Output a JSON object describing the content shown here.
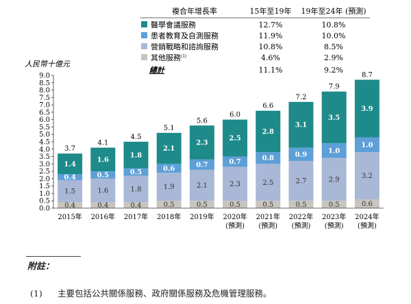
{
  "colors": {
    "medical_conference": "#1e8a8a",
    "patient_education": "#5d9fd6",
    "marketing_consulting": "#a9b8d6",
    "other": "#c8c4be",
    "background": "#ffffff"
  },
  "chart_data": {
    "type": "bar",
    "stacked": true,
    "ylabel": "人民幣十億元",
    "ylim": [
      0,
      9.0
    ],
    "yticks": [
      "0.0",
      "0.5",
      "1.0",
      "1.5",
      "2.0",
      "2.5",
      "3.0",
      "3.5",
      "4.0",
      "4.5",
      "5.0",
      "5.5",
      "6.0",
      "6.5",
      "7.0",
      "7.5",
      "8.0",
      "8.5",
      "9.0"
    ],
    "categories": [
      {
        "year": "2015年",
        "note": ""
      },
      {
        "year": "2016年",
        "note": ""
      },
      {
        "year": "2017年",
        "note": ""
      },
      {
        "year": "2018年",
        "note": ""
      },
      {
        "year": "2019年",
        "note": ""
      },
      {
        "year": "2020年",
        "note": "(預測)"
      },
      {
        "year": "2021年",
        "note": "(預測)"
      },
      {
        "year": "2022年",
        "note": "(預測)"
      },
      {
        "year": "2023年",
        "note": "(預測)"
      },
      {
        "year": "2024年",
        "note": "(預測)"
      }
    ],
    "totals": [
      "3.7",
      "4.1",
      "4.5",
      "5.1",
      "5.6",
      "6.0",
      "6.6",
      "7.2",
      "7.9",
      "8.7"
    ],
    "series": [
      {
        "key": "other",
        "name": "其他服務",
        "values": [
          0.4,
          0.4,
          0.4,
          0.5,
          0.5,
          0.5,
          0.5,
          0.5,
          0.5,
          0.6
        ],
        "labels": [
          "0.4",
          "0.4",
          "0.4",
          "0.5",
          "0.5",
          "0.5",
          "0.5",
          "0.5",
          "0.5",
          "0.6"
        ]
      },
      {
        "key": "marketing_consulting",
        "name": "營銷戰略和諮詢服務",
        "values": [
          1.5,
          1.6,
          1.8,
          1.9,
          2.1,
          2.3,
          2.5,
          2.7,
          2.9,
          3.2
        ],
        "labels": [
          "1.5",
          "1.6",
          "1.8",
          "1.9",
          "2.1",
          "2.3",
          "2.5",
          "2.7",
          "2.9",
          "3.2"
        ]
      },
      {
        "key": "patient_education",
        "name": "患者教育及自測服務",
        "values": [
          0.4,
          0.5,
          0.5,
          0.6,
          0.7,
          0.7,
          0.8,
          0.9,
          1.0,
          1.0
        ],
        "labels": [
          "0.4",
          "0.5",
          "0.5",
          "0.6",
          "0.7",
          "0.7",
          "0.8",
          "0.9",
          "1.0",
          "1.0"
        ]
      },
      {
        "key": "medical_conference",
        "name": "醫學會議服務",
        "values": [
          1.4,
          1.6,
          1.8,
          2.1,
          2.3,
          2.5,
          2.8,
          3.1,
          3.5,
          3.9
        ],
        "labels": [
          "1.4",
          "1.6",
          "1.8",
          "2.1",
          "2.3",
          "2.5",
          "2.8",
          "3.1",
          "3.5",
          "3.9"
        ]
      }
    ],
    "growth_table": {
      "header": "複合年增長率",
      "col1": "15年至19年",
      "col2": "19年至24年 (預測)",
      "rows": [
        {
          "key": "medical_conference",
          "name": "醫學會議服務",
          "sup": "",
          "c1": "12.7%",
          "c2": "10.8%"
        },
        {
          "key": "patient_education",
          "name": "患者教育及自測服務",
          "sup": "",
          "c1": "11.9%",
          "c2": "10.0%"
        },
        {
          "key": "marketing_consulting",
          "name": "營銷戰略和諮詢服務",
          "sup": "",
          "c1": "10.8%",
          "c2": "8.5%"
        },
        {
          "key": "other",
          "name": "其他服務",
          "sup": "(1)",
          "c1": "4.6%",
          "c2": "2.9%"
        }
      ],
      "total": {
        "name": "總計",
        "c1": "11.1%",
        "c2": "9.2%"
      }
    }
  },
  "notes": {
    "title": "附註：",
    "items": [
      {
        "num": "(1)",
        "text": "主要包括公共關係服務、政府關係服務及危機管理服務。"
      }
    ]
  }
}
